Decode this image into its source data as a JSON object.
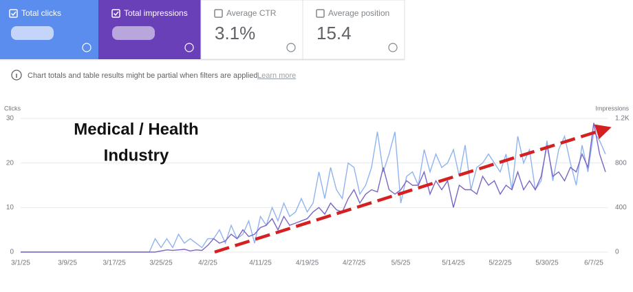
{
  "cards": [
    {
      "label": "Total clicks"
    },
    {
      "label": "Total impressions"
    },
    {
      "label": "Average CTR",
      "value": "3.1%"
    },
    {
      "label": "Average position",
      "value": "15.4"
    }
  ],
  "notice": {
    "text": "Chart totals and table results might be partial when filters are applied.",
    "link": "Learn more"
  },
  "chart_data": {
    "type": "line",
    "annotation": [
      "Medical / Health",
      "Industry"
    ],
    "y_label": "Clicks",
    "y2_label": "Impressions",
    "categories": [
      "3/1/25",
      null,
      null,
      null,
      null,
      null,
      null,
      null,
      "3/9/25",
      null,
      null,
      null,
      null,
      null,
      null,
      null,
      "3/17/25",
      null,
      null,
      null,
      null,
      null,
      null,
      null,
      "3/25/25",
      null,
      null,
      null,
      null,
      null,
      null,
      null,
      "4/2/25",
      null,
      null,
      null,
      null,
      null,
      null,
      null,
      null,
      "4/11/25",
      null,
      null,
      null,
      null,
      null,
      null,
      null,
      "4/19/25",
      null,
      null,
      null,
      null,
      null,
      null,
      null,
      "4/27/25",
      null,
      null,
      null,
      null,
      null,
      null,
      null,
      "5/5/25",
      null,
      null,
      null,
      null,
      null,
      null,
      null,
      null,
      "5/14/25",
      null,
      null,
      null,
      null,
      null,
      null,
      null,
      "5/22/25",
      null,
      null,
      null,
      null,
      null,
      null,
      null,
      "5/30/25",
      null,
      null,
      null,
      null,
      null,
      null,
      null,
      "6/7/25",
      null,
      null
    ],
    "ylim": [
      0,
      30
    ],
    "yticks": [
      0,
      10,
      20,
      30
    ],
    "y2lim": [
      0,
      1200
    ],
    "y2ticks": [
      0,
      400,
      800,
      {
        "value": 1200,
        "label": "1.2K"
      }
    ],
    "grid": true,
    "series": [
      {
        "name": "Clicks",
        "color": "#8fb3f0",
        "values": [
          0,
          0,
          0,
          0,
          0,
          0,
          0,
          0,
          0,
          0,
          0,
          0,
          0,
          0,
          0,
          0,
          0,
          0,
          0,
          0,
          0,
          0,
          0,
          3,
          1,
          3,
          1,
          4,
          2,
          3,
          2,
          1,
          3,
          3,
          5,
          2,
          6,
          3,
          4,
          7,
          2,
          8,
          6,
          10,
          7,
          11,
          8,
          9,
          12,
          9,
          11,
          18,
          12,
          19,
          14,
          12,
          20,
          19,
          13,
          15,
          19,
          27,
          18,
          22,
          27,
          11,
          17,
          18,
          15,
          23,
          18,
          22,
          19,
          20,
          23,
          17,
          24,
          14,
          19,
          20,
          22,
          20,
          18,
          22,
          14,
          26,
          20,
          23,
          14,
          16,
          25,
          16,
          23,
          26,
          20,
          15,
          24,
          18,
          27,
          25,
          22
        ]
      },
      {
        "name": "Impressions",
        "color": "#7a64c4",
        "axis": "y2",
        "values": [
          0,
          0,
          0,
          0,
          0,
          0,
          0,
          0,
          0,
          0,
          0,
          0,
          0,
          0,
          0,
          0,
          0,
          0,
          0,
          0,
          0,
          0,
          0,
          0,
          10,
          20,
          15,
          20,
          25,
          10,
          20,
          15,
          60,
          120,
          80,
          100,
          160,
          120,
          200,
          140,
          160,
          220,
          240,
          300,
          200,
          320,
          240,
          260,
          280,
          300,
          360,
          400,
          340,
          440,
          380,
          360,
          480,
          560,
          440,
          520,
          560,
          540,
          760,
          560,
          520,
          560,
          640,
          600,
          600,
          720,
          520,
          640,
          560,
          640,
          400,
          600,
          560,
          560,
          520,
          680,
          600,
          640,
          520,
          600,
          560,
          720,
          560,
          640,
          560,
          680,
          960,
          680,
          720,
          640,
          760,
          720,
          880,
          760,
          1160,
          880,
          720
        ]
      }
    ]
  }
}
